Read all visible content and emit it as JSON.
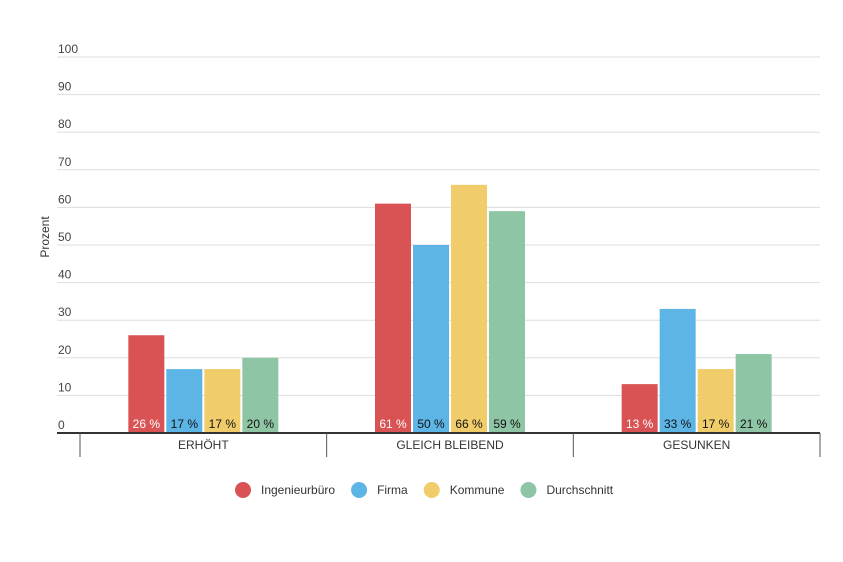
{
  "chart_data": {
    "type": "bar",
    "ylabel": "Prozent",
    "ylim": [
      0,
      100
    ],
    "yticks": [
      0,
      10,
      20,
      30,
      40,
      50,
      60,
      70,
      80,
      90,
      100
    ],
    "grid": true,
    "legend_position": "bottom",
    "categories": [
      "ERHÖHT",
      "GLEICH BLEIBEND",
      "GESUNKEN"
    ],
    "series": [
      {
        "name": "Ingenieurbüro",
        "color": "#d95355",
        "label_color": "#ffffff",
        "values": [
          26,
          61,
          13
        ]
      },
      {
        "name": "Firma",
        "color": "#5db5e5",
        "label_color": "#111111",
        "values": [
          17,
          50,
          33
        ]
      },
      {
        "name": "Kommune",
        "color": "#f0cd6a",
        "label_color": "#111111",
        "values": [
          17,
          66,
          17
        ]
      },
      {
        "name": "Durchschnitt",
        "color": "#8ec5a5",
        "label_color": "#111111",
        "values": [
          20,
          59,
          21
        ]
      }
    ],
    "value_suffix": " %"
  }
}
